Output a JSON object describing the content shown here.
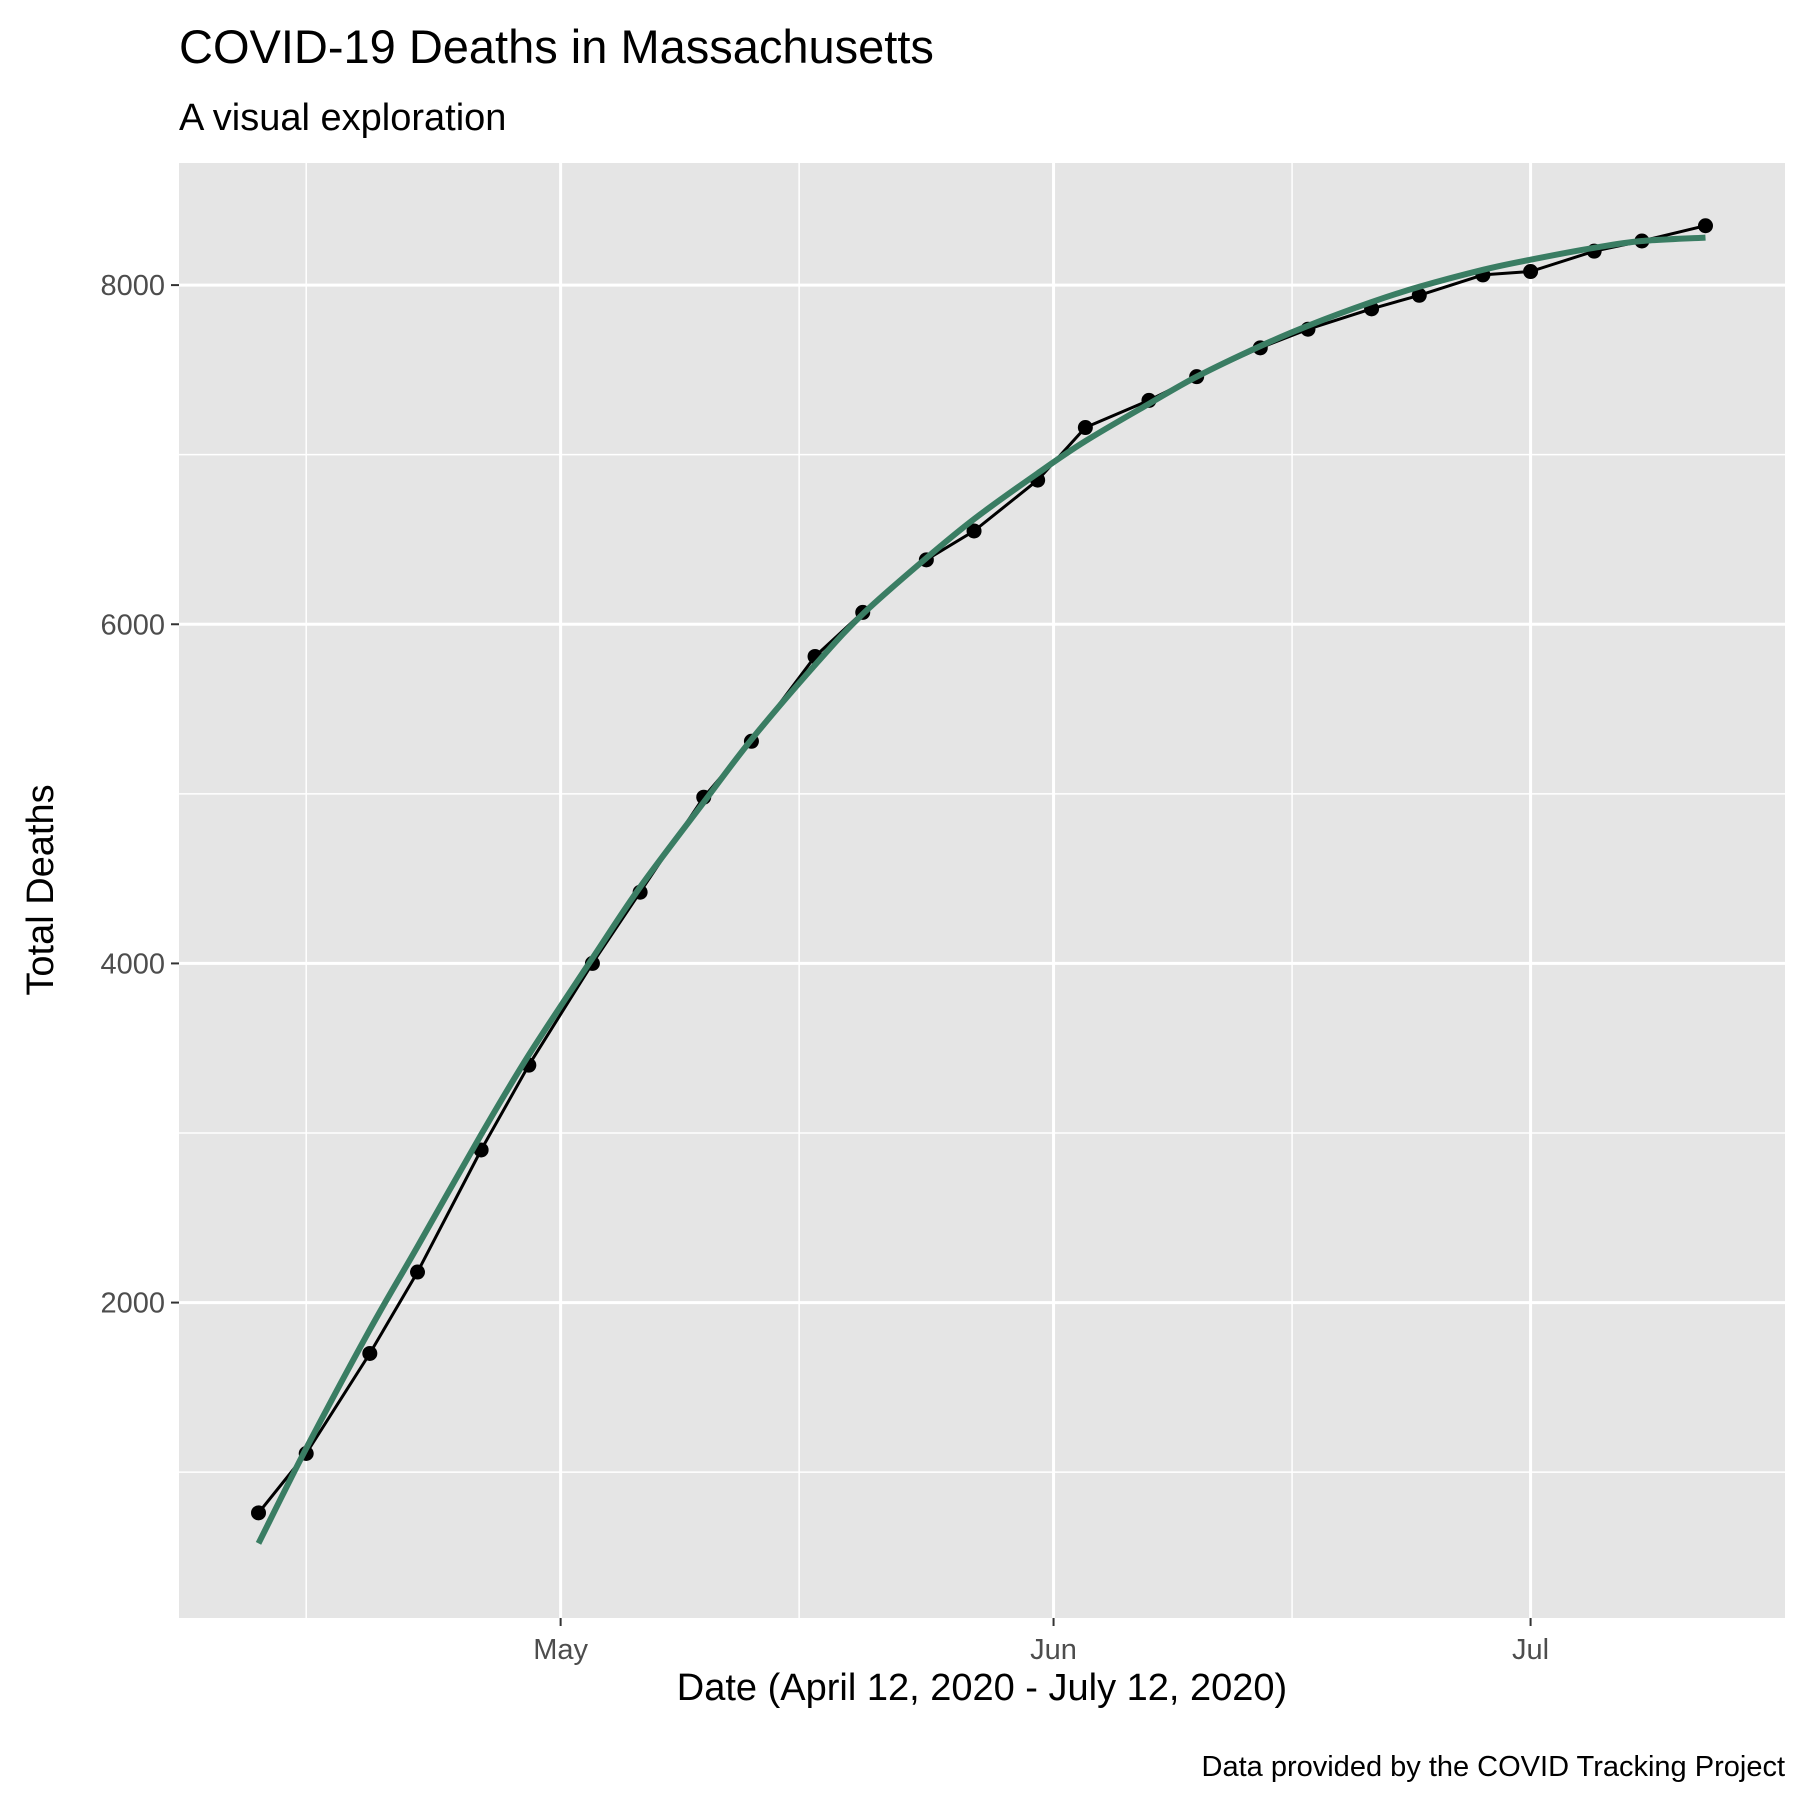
{
  "chart_data": {
    "type": "line",
    "title": "COVID-19 Deaths in Massachusetts",
    "subtitle": "A visual exploration",
    "xlabel": "Date (April 12, 2020 - July 12, 2020)",
    "ylabel": "Total Deaths",
    "caption": "Data provided by the COVID Tracking Project",
    "x_axis": {
      "kind": "date",
      "range": [
        "2020-04-07",
        "2020-07-17"
      ],
      "ticks": [
        {
          "date": "2020-05-01",
          "label": "May"
        },
        {
          "date": "2020-06-01",
          "label": "Jun"
        },
        {
          "date": "2020-07-01",
          "label": "Jul"
        }
      ],
      "minor_gridlines": [
        "2020-04-15",
        "2020-05-16",
        "2020-06-16"
      ]
    },
    "y_axis": {
      "range": [
        140,
        8720
      ],
      "ticks": [
        {
          "value": 2000,
          "label": "2000"
        },
        {
          "value": 4000,
          "label": "4000"
        },
        {
          "value": 6000,
          "label": "6000"
        },
        {
          "value": 8000,
          "label": "8000"
        }
      ],
      "minor_gridlines": [
        1000,
        3000,
        5000,
        7000
      ]
    },
    "grid": true,
    "panel_background": "#e5e5e5",
    "gridline_color": "#ffffff",
    "series": [
      {
        "kind": "observed",
        "color": "#000000",
        "points": [
          {
            "date": "2020-04-12",
            "value": 760
          },
          {
            "date": "2020-04-15",
            "value": 1110
          },
          {
            "date": "2020-04-19",
            "value": 1700
          },
          {
            "date": "2020-04-22",
            "value": 2180
          },
          {
            "date": "2020-04-26",
            "value": 2900
          },
          {
            "date": "2020-04-29",
            "value": 3400
          },
          {
            "date": "2020-05-03",
            "value": 4000
          },
          {
            "date": "2020-05-06",
            "value": 4420
          },
          {
            "date": "2020-05-10",
            "value": 4980
          },
          {
            "date": "2020-05-13",
            "value": 5310
          },
          {
            "date": "2020-05-17",
            "value": 5810
          },
          {
            "date": "2020-05-20",
            "value": 6070
          },
          {
            "date": "2020-05-24",
            "value": 6380
          },
          {
            "date": "2020-05-27",
            "value": 6550
          },
          {
            "date": "2020-05-31",
            "value": 6850
          },
          {
            "date": "2020-06-03",
            "value": 7160
          },
          {
            "date": "2020-06-07",
            "value": 7320
          },
          {
            "date": "2020-06-10",
            "value": 7460
          },
          {
            "date": "2020-06-14",
            "value": 7630
          },
          {
            "date": "2020-06-17",
            "value": 7740
          },
          {
            "date": "2020-06-21",
            "value": 7860
          },
          {
            "date": "2020-06-24",
            "value": 7940
          },
          {
            "date": "2020-06-28",
            "value": 8060
          },
          {
            "date": "2020-07-01",
            "value": 8080
          },
          {
            "date": "2020-07-05",
            "value": 8200
          },
          {
            "date": "2020-07-08",
            "value": 8260
          },
          {
            "date": "2020-07-12",
            "value": 8350
          }
        ]
      },
      {
        "kind": "smoothed fit",
        "color": "#3a7d63",
        "points": [
          {
            "date": "2020-04-12",
            "value": 580
          },
          {
            "date": "2020-04-15",
            "value": 1140
          },
          {
            "date": "2020-04-19",
            "value": 1840
          },
          {
            "date": "2020-04-22",
            "value": 2330
          },
          {
            "date": "2020-04-26",
            "value": 2990
          },
          {
            "date": "2020-04-29",
            "value": 3460
          },
          {
            "date": "2020-05-03",
            "value": 4030
          },
          {
            "date": "2020-05-06",
            "value": 4450
          },
          {
            "date": "2020-05-10",
            "value": 4950
          },
          {
            "date": "2020-05-13",
            "value": 5320
          },
          {
            "date": "2020-05-17",
            "value": 5760
          },
          {
            "date": "2020-05-20",
            "value": 6060
          },
          {
            "date": "2020-05-24",
            "value": 6390
          },
          {
            "date": "2020-05-27",
            "value": 6620
          },
          {
            "date": "2020-05-31",
            "value": 6890
          },
          {
            "date": "2020-06-03",
            "value": 7080
          },
          {
            "date": "2020-06-07",
            "value": 7300
          },
          {
            "date": "2020-06-10",
            "value": 7460
          },
          {
            "date": "2020-06-14",
            "value": 7640
          },
          {
            "date": "2020-06-17",
            "value": 7760
          },
          {
            "date": "2020-06-21",
            "value": 7900
          },
          {
            "date": "2020-06-24",
            "value": 7990
          },
          {
            "date": "2020-06-28",
            "value": 8090
          },
          {
            "date": "2020-07-01",
            "value": 8150
          },
          {
            "date": "2020-07-05",
            "value": 8220
          },
          {
            "date": "2020-07-08",
            "value": 8260
          },
          {
            "date": "2020-07-12",
            "value": 8280
          }
        ]
      }
    ]
  }
}
